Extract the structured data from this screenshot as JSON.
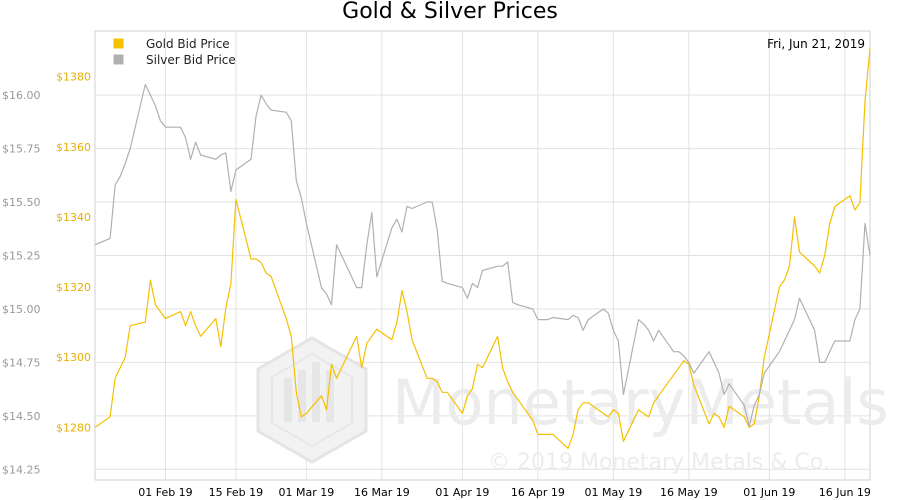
{
  "chart_data": {
    "type": "line",
    "title": "Gold & Silver Prices",
    "current_date": "Fri, Jun 21, 2019",
    "x": [
      "2019-01-18",
      "2019-01-21",
      "2019-01-22",
      "2019-01-23",
      "2019-01-24",
      "2019-01-25",
      "2019-01-28",
      "2019-01-29",
      "2019-01-30",
      "2019-01-31",
      "2019-02-01",
      "2019-02-04",
      "2019-02-05",
      "2019-02-06",
      "2019-02-07",
      "2019-02-08",
      "2019-02-11",
      "2019-02-12",
      "2019-02-13",
      "2019-02-14",
      "2019-02-15",
      "2019-02-18",
      "2019-02-19",
      "2019-02-20",
      "2019-02-21",
      "2019-02-22",
      "2019-02-25",
      "2019-02-26",
      "2019-02-27",
      "2019-02-28",
      "2019-03-01",
      "2019-03-04",
      "2019-03-05",
      "2019-03-06",
      "2019-03-07",
      "2019-03-08",
      "2019-03-11",
      "2019-03-12",
      "2019-03-13",
      "2019-03-14",
      "2019-03-15",
      "2019-03-18",
      "2019-03-19",
      "2019-03-20",
      "2019-03-21",
      "2019-03-22",
      "2019-03-25",
      "2019-03-26",
      "2019-03-27",
      "2019-03-28",
      "2019-03-29",
      "2019-04-01",
      "2019-04-02",
      "2019-04-03",
      "2019-04-04",
      "2019-04-05",
      "2019-04-08",
      "2019-04-09",
      "2019-04-10",
      "2019-04-11",
      "2019-04-12",
      "2019-04-15",
      "2019-04-16",
      "2019-04-17",
      "2019-04-18",
      "2019-04-19",
      "2019-04-22",
      "2019-04-23",
      "2019-04-24",
      "2019-04-25",
      "2019-04-26",
      "2019-04-29",
      "2019-04-30",
      "2019-05-01",
      "2019-05-02",
      "2019-05-03",
      "2019-05-06",
      "2019-05-07",
      "2019-05-08",
      "2019-05-09",
      "2019-05-10",
      "2019-05-13",
      "2019-05-14",
      "2019-05-15",
      "2019-05-16",
      "2019-05-17",
      "2019-05-20",
      "2019-05-21",
      "2019-05-22",
      "2019-05-23",
      "2019-05-24",
      "2019-05-27",
      "2019-05-28",
      "2019-05-29",
      "2019-05-30",
      "2019-05-31",
      "2019-06-03",
      "2019-06-04",
      "2019-06-05",
      "2019-06-06",
      "2019-06-07",
      "2019-06-10",
      "2019-06-11",
      "2019-06-12",
      "2019-06-13",
      "2019-06-14",
      "2019-06-17",
      "2019-06-18",
      "2019-06-19",
      "2019-06-20",
      "2019-06-21"
    ],
    "xaxis": {
      "range": [
        "2019-01-18",
        "2019-06-21"
      ],
      "ticks": [
        "2019-02-01",
        "2019-02-15",
        "2019-03-01",
        "2019-03-16",
        "2019-04-01",
        "2019-04-16",
        "2019-05-01",
        "2019-05-16",
        "2019-06-01",
        "2019-06-16"
      ],
      "tick_labels": [
        "01 Feb 19",
        "15 Feb 19",
        "01 Mar 19",
        "16 Mar 19",
        "01 Apr 19",
        "16 Apr 19",
        "01 May 19",
        "16 May 19",
        "01 Jun 19",
        "16 Jun 19"
      ]
    },
    "y_left": {
      "range": [
        14.2,
        16.3
      ],
      "ticks": [
        14.25,
        14.5,
        14.75,
        15.0,
        15.25,
        15.5,
        15.75,
        16.0
      ],
      "tick_labels": [
        "$14.25",
        "$14.50",
        "$14.75",
        "$15.00",
        "$15.25",
        "$15.50",
        "$15.75",
        "$16.00"
      ],
      "color": "#999999"
    },
    "y_right": {
      "range": [
        1265,
        1393
      ],
      "ticks": [
        1280,
        1300,
        1320,
        1340,
        1360,
        1380
      ],
      "tick_labels": [
        "$1280",
        "$1300",
        "$1320",
        "$1340",
        "$1360",
        "$1380"
      ],
      "color": "#e6b000"
    },
    "grid": true,
    "legend_position": "top-left",
    "series": [
      {
        "name": "Gold Bid Price",
        "axis": "right",
        "color": "#f5c000",
        "values": [
          1280,
          1283,
          1294,
          1297,
          1300,
          1309,
          1310,
          1322,
          1315,
          1313,
          1311,
          1313,
          1309,
          1313,
          1309,
          1306,
          1311,
          1303,
          1314,
          1321,
          1345,
          1328,
          1328,
          1327,
          1324,
          1323,
          1311,
          1306,
          1290,
          1283,
          1284,
          1289,
          1285,
          1298,
          1294,
          1297,
          1306,
          1297,
          1304,
          1306,
          1308,
          1305,
          1310,
          1319,
          1313,
          1305,
          1294,
          1294,
          1293,
          1290,
          1290,
          1284,
          1289,
          1291,
          1298,
          1297,
          1306,
          1297,
          1293,
          1290,
          1288,
          1282,
          1278,
          1278,
          1278,
          1278,
          1274,
          1278,
          1285,
          1287,
          1287,
          1284,
          1283,
          1285,
          1284,
          1276,
          1285,
          1284,
          1283,
          1287,
          1289,
          1295,
          1297,
          1299,
          1298,
          1292,
          1281,
          1284,
          1283,
          1280,
          1286,
          1283,
          1280,
          1281,
          1289,
          1300,
          1320,
          1322,
          1326,
          1340,
          1330,
          1326,
          1324,
          1329,
          1338,
          1343,
          1346,
          1342,
          1344,
          1373,
          1388
        ]
      },
      {
        "name": "Silver Bid Price",
        "axis": "left",
        "color": "#b0b0b0",
        "values": [
          15.3,
          15.33,
          15.58,
          15.62,
          15.68,
          15.75,
          16.05,
          16.0,
          15.95,
          15.88,
          15.85,
          15.85,
          15.8,
          15.7,
          15.78,
          15.72,
          15.7,
          15.72,
          15.73,
          15.55,
          15.65,
          15.7,
          15.9,
          16.0,
          15.96,
          15.93,
          15.92,
          15.88,
          15.6,
          15.52,
          15.4,
          15.1,
          15.07,
          15.02,
          15.3,
          15.25,
          15.1,
          15.1,
          15.3,
          15.45,
          15.15,
          15.38,
          15.42,
          15.36,
          15.48,
          15.47,
          15.5,
          15.5,
          15.37,
          15.13,
          15.12,
          15.1,
          15.05,
          15.12,
          15.1,
          15.18,
          15.2,
          15.2,
          15.22,
          15.03,
          15.02,
          15.0,
          14.95,
          14.95,
          14.95,
          14.96,
          14.95,
          14.97,
          14.96,
          14.9,
          14.95,
          15.0,
          14.98,
          14.9,
          14.85,
          14.6,
          14.95,
          14.93,
          14.9,
          14.85,
          14.9,
          14.8,
          14.8,
          14.78,
          14.75,
          14.7,
          14.8,
          14.75,
          14.7,
          14.6,
          14.65,
          14.55,
          14.45,
          14.55,
          14.6,
          14.7,
          14.8,
          14.85,
          14.9,
          14.95,
          15.05,
          14.9,
          14.75,
          14.75,
          14.8,
          14.85,
          14.85,
          14.95,
          15.0,
          15.4,
          15.25
        ]
      }
    ]
  },
  "watermark": {
    "name": "MonetaryMetals",
    "copyright": "© 2019 Monetary Metals & Co."
  }
}
